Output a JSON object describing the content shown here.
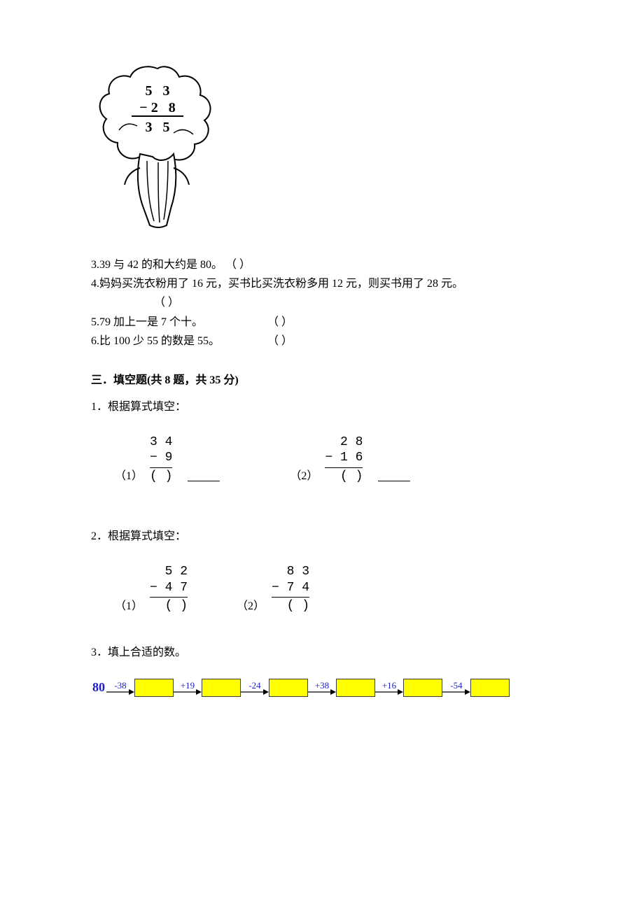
{
  "tree_subtraction": {
    "top": "5   3",
    "mid": "−  2   8",
    "bot": "3   5"
  },
  "tf": {
    "q3_num": "3.",
    "q3_text": "39 与 42 的和大约是 80。  （      ）",
    "q4_num": "4.",
    "q4_text": "妈妈买洗衣粉用了 16 元，买书比买洗衣粉多用 12 元，则买书用了 28 元。",
    "q4_blank": "（      ）",
    "q5_num": "5.",
    "q5_text": "79 加上一是 7 个十。",
    "q5_blank": "（      ）",
    "q6_num": "6.",
    "q6_text": "比 100 少 55 的数是 55。",
    "q6_blank": "（      ）"
  },
  "section3_title": "三．填空题(共 8 题，共 35 分)",
  "fill": {
    "q1_stem": "1．根据算式填空：",
    "q1a_label": "（1）",
    "q1a_top": "3 4",
    "q1a_mid": "−    9",
    "q1a_bot": "(    )",
    "q1b_label": "（2）",
    "q1b_top": "2 8",
    "q1b_mid": "− 1 6",
    "q1b_bot": "(    )",
    "q2_stem": "2．根据算式填空：",
    "q2a_label": "（1）",
    "q2a_top": "5 2",
    "q2a_mid": "− 4 7",
    "q2a_bot": "(    )",
    "q2b_label": "（2）",
    "q2b_top": "8 3",
    "q2b_mid": "− 7 4",
    "q2b_bot": "(    )",
    "q3_stem": "3．填上合适的数。"
  },
  "flow": {
    "start": "80",
    "ops": [
      "-38",
      "+19",
      "-24",
      "+38",
      "+16",
      "-54"
    ],
    "box_color": "#ffff00",
    "box_border": "#3a3a3a",
    "text_color": "#1e1ec8",
    "arrow_color": "#000000"
  }
}
